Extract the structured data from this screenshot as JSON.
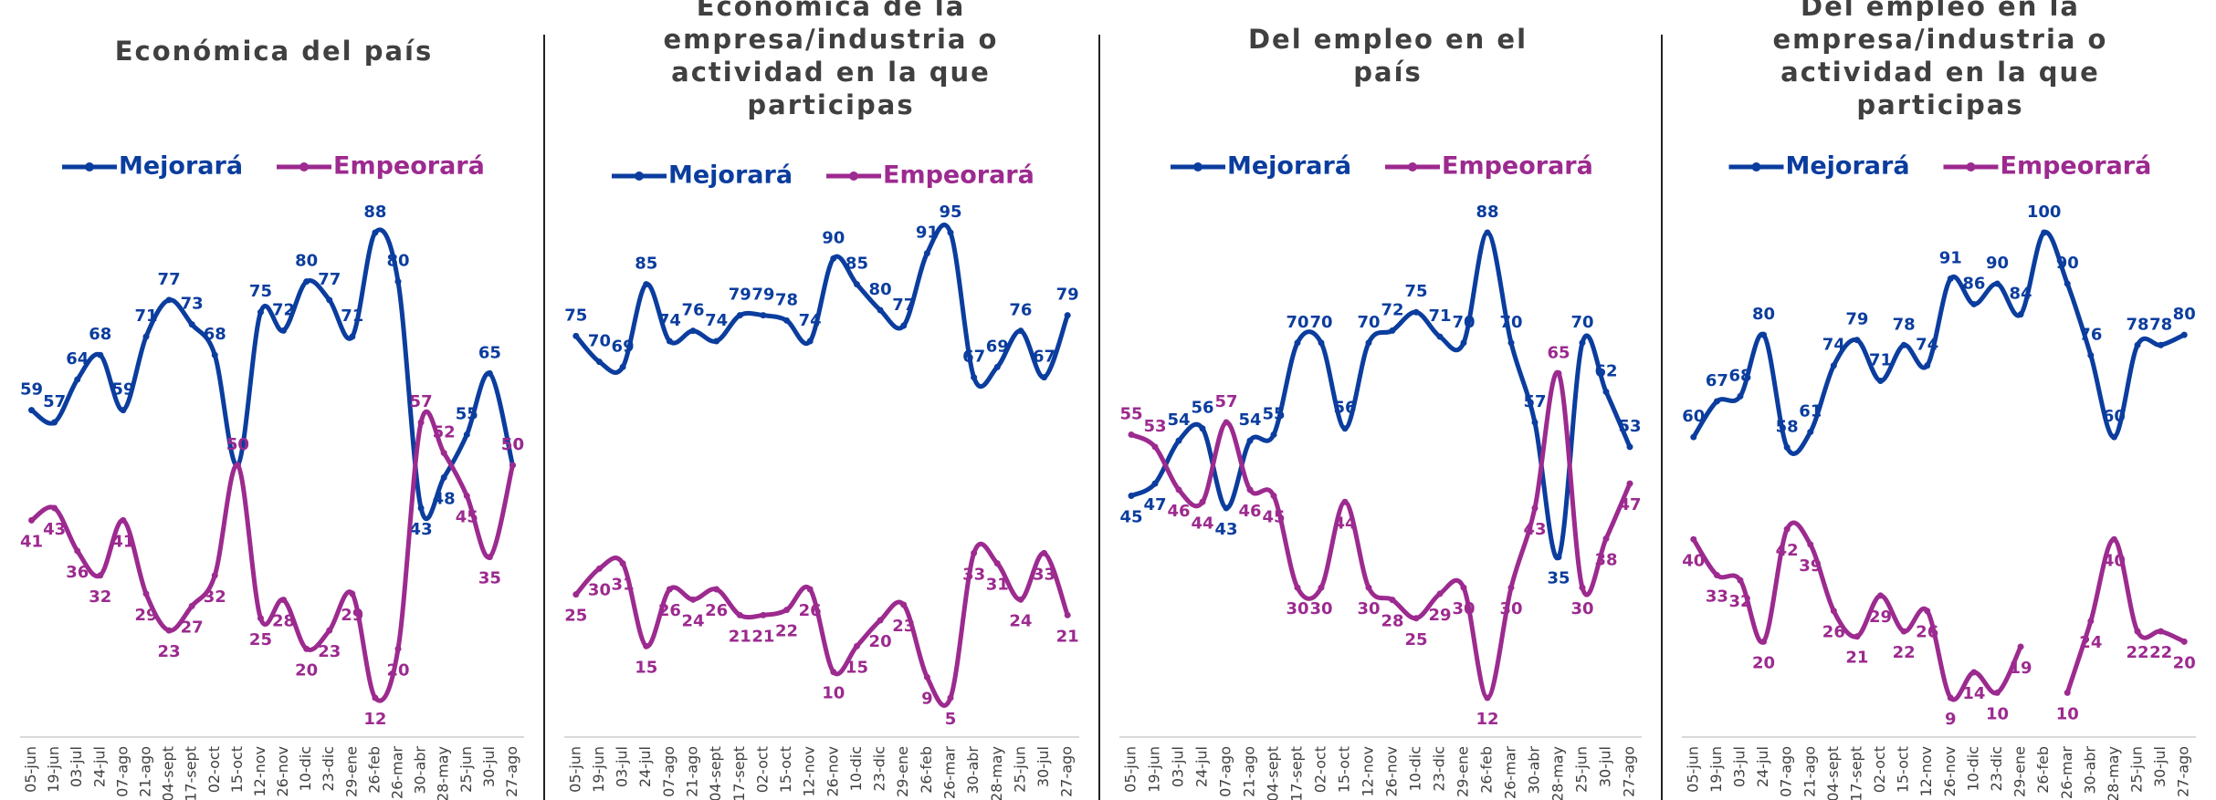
{
  "chart_data": [
    {
      "type": "line",
      "title": "Económica del país",
      "categories": [
        "05-jun",
        "19-jun",
        "03-jul",
        "24-jul",
        "07-ago",
        "21-ago",
        "04-sept",
        "17-sept",
        "02-oct",
        "15-oct",
        "12-nov",
        "26-nov",
        "10-dic",
        "23-dic",
        "29-ene",
        "26-feb",
        "26-mar",
        "30-abr",
        "28-may",
        "25-jun",
        "30-jul",
        "27-ago"
      ],
      "series": [
        {
          "name": "Mejorará",
          "color": "#0b3d9e",
          "values": [
            59,
            57,
            64,
            68,
            59,
            71,
            77,
            73,
            68,
            50,
            75,
            72,
            80,
            77,
            71,
            88,
            80,
            43,
            48,
            55,
            65,
            50
          ]
        },
        {
          "name": "Empeorará",
          "color": "#9c2a8f",
          "values": [
            41,
            43,
            36,
            32,
            41,
            29,
            23,
            27,
            32,
            50,
            25,
            28,
            20,
            23,
            29,
            12,
            20,
            57,
            52,
            45,
            35,
            50
          ]
        }
      ]
    },
    {
      "type": "line",
      "title": "Económica de la empresa/industria o actividad en la que participas",
      "categories": [
        "05-jun",
        "19-jun",
        "03-jul",
        "24-jul",
        "07-ago",
        "21-ago",
        "04-sept",
        "17-sept",
        "02-oct",
        "15-oct",
        "12-nov",
        "26-nov",
        "10-dic",
        "23-dic",
        "29-ene",
        "26-feb",
        "26-mar",
        "30-abr",
        "28-may",
        "25-jun",
        "30-jul",
        "27-ago"
      ],
      "series": [
        {
          "name": "Mejorará",
          "color": "#0b3d9e",
          "values": [
            75,
            70,
            69,
            85,
            74,
            76,
            74,
            79,
            79,
            78,
            74,
            90,
            85,
            80,
            77,
            91,
            95,
            67,
            69,
            76,
            67,
            79
          ]
        },
        {
          "name": "Empeorará",
          "color": "#9c2a8f",
          "values": [
            25,
            30,
            31,
            15,
            26,
            24,
            26,
            21,
            21,
            22,
            26,
            10,
            15,
            20,
            23,
            9,
            5,
            33,
            31,
            24,
            33,
            21
          ]
        }
      ]
    },
    {
      "type": "line",
      "title": "Del empleo en el país",
      "categories": [
        "05-jun",
        "19-jun",
        "03-jul",
        "24-jul",
        "07-ago",
        "21-ago",
        "04-sept",
        "17-sept",
        "02-oct",
        "15-oct",
        "12-nov",
        "26-nov",
        "10-dic",
        "23-dic",
        "29-ene",
        "26-feb",
        "26-mar",
        "30-abr",
        "28-may",
        "25-jun",
        "30-jul",
        "27-ago"
      ],
      "series": [
        {
          "name": "Mejorará",
          "color": "#0b3d9e",
          "values": [
            45,
            47,
            54,
            56,
            43,
            54,
            55,
            70,
            70,
            56,
            70,
            72,
            75,
            71,
            70,
            88,
            70,
            57,
            35,
            70,
            62,
            53
          ]
        },
        {
          "name": "Empeorará",
          "color": "#9c2a8f",
          "values": [
            55,
            53,
            46,
            44,
            57,
            46,
            45,
            30,
            30,
            44,
            30,
            28,
            25,
            29,
            30,
            12,
            30,
            43,
            65,
            30,
            38,
            47
          ]
        }
      ]
    },
    {
      "type": "line",
      "title": "Del empleo en la empresa/industria o actividad en la que participas",
      "categories": [
        "05-jun",
        "19-jun",
        "03-jul",
        "24-jul",
        "07-ago",
        "21-ago",
        "04-sept",
        "17-sept",
        "02-oct",
        "15-oct",
        "12-nov",
        "26-nov",
        "10-dic",
        "23-dic",
        "29-ene",
        "26-feb",
        "26-mar",
        "30-abr",
        "28-may",
        "25-jun",
        "30-jul",
        "27-ago"
      ],
      "series": [
        {
          "name": "Mejorará",
          "color": "#0b3d9e",
          "values": [
            60,
            67,
            68,
            80,
            58,
            61,
            74,
            79,
            71,
            78,
            74,
            91,
            86,
            90,
            84,
            100,
            90,
            76,
            60,
            78,
            78,
            80
          ]
        },
        {
          "name": "Empeorará",
          "color": "#9c2a8f",
          "values": [
            40,
            33,
            32,
            20,
            42,
            39,
            26,
            21,
            29,
            22,
            26,
            9,
            14,
            10,
            19,
            null,
            10,
            24,
            40,
            22,
            22,
            20
          ]
        }
      ]
    }
  ]
}
